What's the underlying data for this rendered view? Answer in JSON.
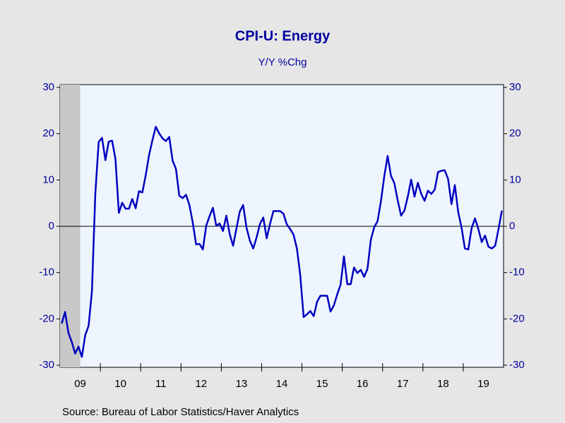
{
  "chart_data": {
    "type": "line",
    "title": "CPI-U: Energy",
    "subtitle": "Y/Y %Chg",
    "source": "Source:  Bureau of Labor Statistics/Haver Analytics",
    "x_axis_labels": [
      "09",
      "10",
      "11",
      "12",
      "13",
      "14",
      "15",
      "16",
      "17",
      "18",
      "19"
    ],
    "periods_per_label": 12,
    "shaded_periods": [
      0,
      6
    ],
    "series": [
      {
        "name": "CPI-U: Energy",
        "color": "#0000c0",
        "values": [
          -21,
          -18.5,
          -23,
          -25,
          -27.5,
          -26,
          -28.2,
          -23.5,
          -21.5,
          -14,
          7,
          18.2,
          19.1,
          14.3,
          18.3,
          18.5,
          14.5,
          2.9,
          5.1,
          3.8,
          3.8,
          5.9,
          3.9,
          7.6,
          7.3,
          11.0,
          15.4,
          18.6,
          21.5,
          20.1,
          19.0,
          18.4,
          19.3,
          14.2,
          12.4,
          6.6,
          6.1,
          6.8,
          4.6,
          0.8,
          -3.9,
          -3.8,
          -5.0,
          0.1,
          2.2,
          4.0,
          0.1,
          0.6,
          -1.0,
          2.3,
          -1.7,
          -4.2,
          -0.5,
          3.2,
          4.6,
          -0.3,
          -3.1,
          -4.8,
          -2.4,
          0.5,
          1.9,
          -2.6,
          0.5,
          3.3,
          3.3,
          3.3,
          2.7,
          0.4,
          -0.6,
          -1.8,
          -4.8,
          -10.6,
          -19.6,
          -19.0,
          -18.3,
          -19.4,
          -16.3,
          -15.0,
          -15.0,
          -15.0,
          -18.4,
          -17.1,
          -14.7,
          -12.6,
          -6.5,
          -12.5,
          -12.5,
          -8.9,
          -10.1,
          -9.4,
          -10.9,
          -9.2,
          -2.9,
          -0.2,
          1.1,
          5.4,
          10.8,
          15.2,
          10.9,
          9.3,
          5.6,
          2.3,
          3.4,
          6.4,
          10.1,
          6.4,
          9.4,
          7.0,
          5.5,
          7.7,
          7.0,
          7.9,
          11.7,
          12.0,
          12.1,
          10.2,
          4.8,
          8.9,
          3.1,
          -0.3,
          -4.8,
          -5.0,
          -0.4,
          1.7,
          -0.6,
          -3.4,
          -2.0,
          -4.4,
          -4.8,
          -4.2,
          -0.6,
          3.4
        ]
      }
    ],
    "ylim": [
      -30,
      30
    ],
    "yticks": [
      -30,
      -20,
      -10,
      0,
      10,
      20,
      30
    ],
    "y2lim": [
      -30,
      30
    ],
    "y2ticks": [
      -30,
      -20,
      -10,
      0,
      10,
      20,
      30
    ],
    "zero_line": true
  }
}
